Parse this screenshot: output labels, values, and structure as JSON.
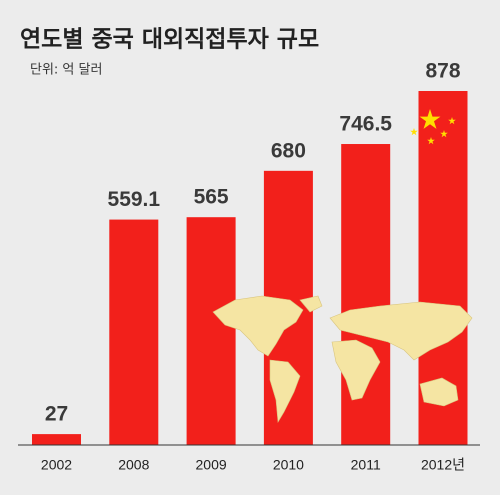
{
  "chart_data": {
    "type": "bar",
    "title": "연도별 중국 대외직접투자 규모",
    "subtitle": "단위: 억 달러",
    "categories": [
      "2002",
      "2008",
      "2009",
      "2010",
      "2011",
      "2012년"
    ],
    "values": [
      27,
      559.1,
      565,
      680,
      746.5,
      878
    ],
    "color": "#f2201b"
  }
}
